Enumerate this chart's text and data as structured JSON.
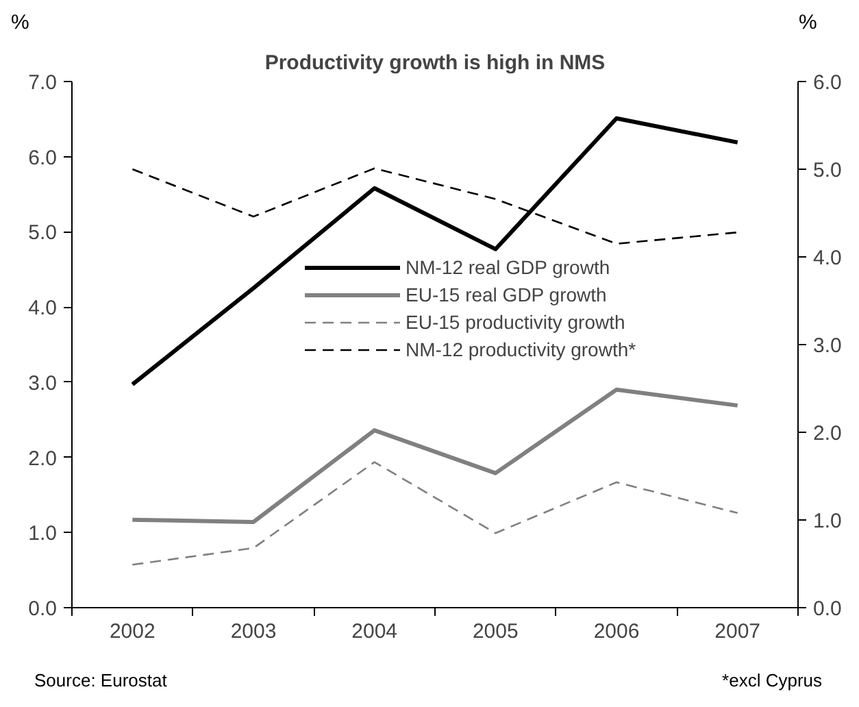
{
  "chart_data": {
    "type": "line",
    "title": "Productivity growth is high in NMS",
    "ylabel": "%",
    "y2label": "%",
    "categories": [
      "2002",
      "2003",
      "2004",
      "2005",
      "2006",
      "2007"
    ],
    "series": [
      {
        "name": "NM-12 real GDP growth",
        "color": "#000000",
        "line_style": "solid",
        "values": [
          2.97,
          4.25,
          5.58,
          4.77,
          6.51,
          6.19
        ]
      },
      {
        "name": "EU-15 real GDP growth",
        "color": "#808080",
        "line_style": "solid",
        "values": [
          1.17,
          1.14,
          2.36,
          1.79,
          2.9,
          2.69
        ]
      },
      {
        "name": "EU-15 productivity growth",
        "color": "#808080",
        "line_style": "dashed",
        "axis": "y2",
        "values": [
          0.49,
          0.68,
          1.66,
          0.85,
          1.43,
          1.08
        ]
      },
      {
        "name": "NM-12 productivity growth*",
        "color": "#000000",
        "line_style": "dashed",
        "axis": "y2",
        "values": [
          5.0,
          4.46,
          5.01,
          4.66,
          4.15,
          4.28
        ]
      }
    ],
    "ylim": [
      0,
      7
    ],
    "yticks": [
      {
        "value": 0,
        "label": "0.0"
      },
      {
        "value": 1,
        "label": "1.0"
      },
      {
        "value": 2,
        "label": "2.0"
      },
      {
        "value": 3,
        "label": "3.0"
      },
      {
        "value": 4,
        "label": "4.0"
      },
      {
        "value": 5,
        "label": "5.0"
      },
      {
        "value": 6,
        "label": "6.0"
      },
      {
        "value": 7,
        "label": "7.0"
      }
    ],
    "y2lim": [
      0,
      6
    ],
    "y2ticks": [
      {
        "value": 0,
        "label": "0.0"
      },
      {
        "value": 1,
        "label": "1.0"
      },
      {
        "value": 2,
        "label": "2.0"
      },
      {
        "value": 3,
        "label": "3.0"
      },
      {
        "value": 4,
        "label": "4.0"
      },
      {
        "value": 5,
        "label": "5.0"
      },
      {
        "value": 6,
        "label": "6.0"
      }
    ],
    "grid": false,
    "legend": "right",
    "annotations": [
      "Source: Eurostat",
      "*excl Cyprus"
    ]
  }
}
